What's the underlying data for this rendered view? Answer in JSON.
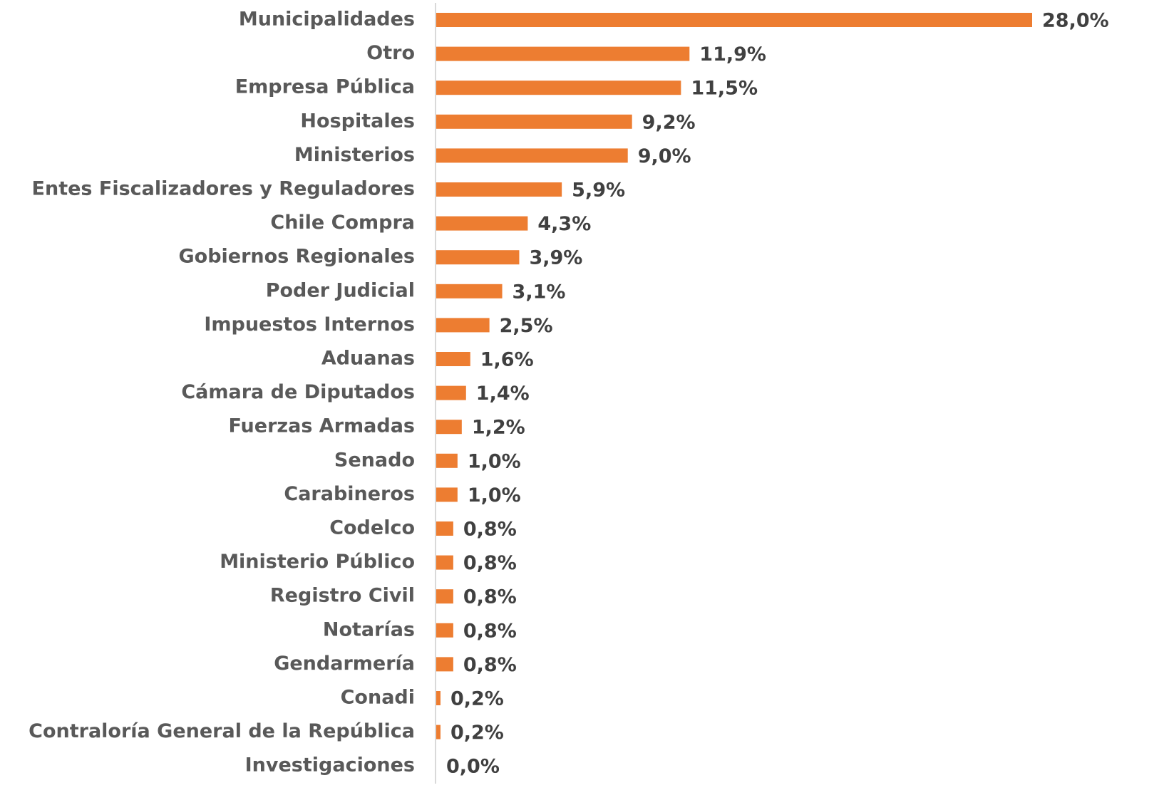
{
  "chart_data": {
    "type": "bar",
    "orientation": "horizontal",
    "color": "#ed7d31",
    "categories": [
      "Municipalidades",
      "Otro",
      "Empresa Pública",
      "Hospitales",
      "Ministerios",
      "Entes Fiscalizadores y Reguladores",
      "Chile Compra",
      "Gobiernos Regionales",
      "Poder Judicial",
      "Impuestos Internos",
      "Aduanas",
      "Cámara de Diputados",
      "Fuerzas Armadas",
      "Senado",
      "Carabineros",
      "Codelco",
      "Ministerio Público",
      "Registro Civil",
      "Notarías",
      "Gendarmería",
      "Conadi",
      "Contraloría General de la República",
      "Investigaciones"
    ],
    "values": [
      28.0,
      11.9,
      11.5,
      9.2,
      9.0,
      5.9,
      4.3,
      3.9,
      3.1,
      2.5,
      1.6,
      1.4,
      1.2,
      1.0,
      1.0,
      0.8,
      0.8,
      0.8,
      0.8,
      0.8,
      0.2,
      0.2,
      0.0
    ],
    "value_labels": [
      "28,0%",
      "11,9%",
      "11,5%",
      "9,2%",
      "9,0%",
      "5,9%",
      "4,3%",
      "3,9%",
      "3,1%",
      "2,5%",
      "1,6%",
      "1,4%",
      "1,2%",
      "1,0%",
      "1,0%",
      "0,8%",
      "0,8%",
      "0,8%",
      "0,8%",
      "0,8%",
      "0,2%",
      "0,2%",
      "0,0%"
    ]
  }
}
